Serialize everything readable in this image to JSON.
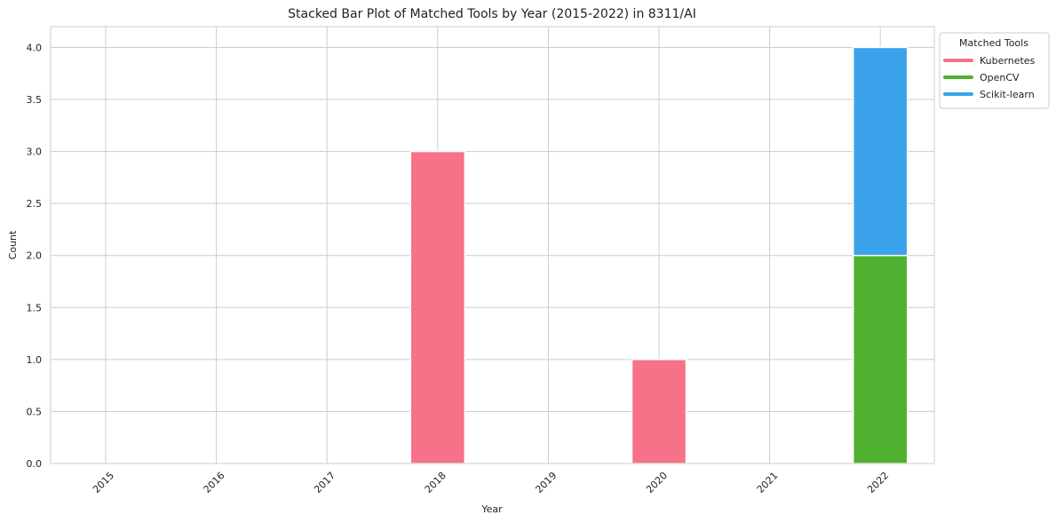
{
  "chart_data": {
    "type": "bar",
    "stacked": true,
    "title": "Stacked Bar Plot of Matched Tools by Year (2015-2022) in 8311/AI",
    "xlabel": "Year",
    "ylabel": "Count",
    "categories": [
      "2015",
      "2016",
      "2017",
      "2018",
      "2019",
      "2020",
      "2021",
      "2022"
    ],
    "series": [
      {
        "name": "Kubernetes",
        "color": "#f77189",
        "values": [
          0,
          0,
          0,
          3,
          0,
          1,
          0,
          0
        ]
      },
      {
        "name": "OpenCV",
        "color": "#50b131",
        "values": [
          0,
          0,
          0,
          0,
          0,
          0,
          0,
          2
        ]
      },
      {
        "name": "Scikit-learn",
        "color": "#3ba3ec",
        "values": [
          0,
          0,
          0,
          0,
          0,
          0,
          0,
          2
        ]
      }
    ],
    "ylim": [
      0,
      4.2
    ],
    "yticks": [
      "0.0",
      "0.5",
      "1.0",
      "1.5",
      "2.0",
      "2.5",
      "3.0",
      "3.5",
      "4.0"
    ],
    "grid": true,
    "legend": {
      "title": "Matched Tools",
      "placement": "outside-top-right"
    }
  }
}
